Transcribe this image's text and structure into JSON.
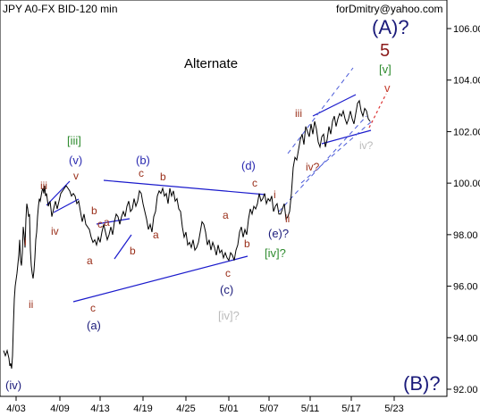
{
  "chart_data": {
    "type": "line",
    "title": "JPY A0-FX BID-120 min",
    "watermark": "forDmitry@yahoo.com",
    "annotation_text": "Alternate",
    "y_axis": {
      "position": "right",
      "ylim": [
        91.6,
        107
      ],
      "ticks": [
        "106.00",
        "104.00",
        "102.00",
        "100.00",
        "98.00",
        "96.00",
        "94.00",
        "92.00"
      ]
    },
    "x_axis": {
      "ticks": [
        "4/03",
        "4/09",
        "4/13",
        "4/19",
        "4/25",
        "5/01",
        "5/07",
        "5/11",
        "5/17",
        "5/23"
      ]
    },
    "grid": false,
    "colors": {
      "price": "#000000",
      "trendline": "#1a1acc",
      "channel_dashed": "#4a5ad8",
      "forecast": "#dd3333",
      "brown": "#9a2f1a",
      "green": "#2e8b2e",
      "gray": "#bbbbbb",
      "navy": "#1a1a7a",
      "blue_text": "#2a2ab0"
    },
    "price_x": [
      0,
      2,
      4,
      6,
      7,
      8,
      9,
      10,
      11,
      12,
      13,
      15,
      17,
      18,
      19,
      20,
      21,
      22,
      23,
      24,
      25,
      26,
      27,
      28,
      29,
      30,
      31,
      32,
      33,
      34,
      35,
      36,
      37,
      38,
      39,
      40,
      41,
      42,
      43,
      44,
      45,
      46,
      47,
      48,
      50,
      52,
      54,
      56,
      58,
      60,
      62,
      64,
      66,
      68,
      70,
      72,
      74,
      76,
      78,
      80,
      82,
      84,
      86,
      88,
      90,
      92,
      94,
      96,
      98,
      100,
      102,
      104,
      106,
      108,
      110,
      112,
      114,
      116,
      118,
      120,
      122,
      124,
      126,
      128,
      130,
      132,
      134,
      136,
      138,
      140,
      142,
      144,
      146,
      148,
      150,
      152,
      154,
      156,
      158,
      160,
      162,
      164,
      166,
      168,
      170,
      172,
      174,
      176,
      178,
      180,
      182,
      184,
      186,
      188,
      190,
      192,
      194,
      196,
      198,
      200,
      202,
      204,
      206,
      208,
      210,
      212,
      214,
      216,
      218,
      220,
      222,
      224,
      226,
      228,
      230,
      232,
      234,
      236,
      238,
      240,
      242,
      244,
      246,
      248,
      250,
      252,
      254,
      256,
      258,
      260,
      262,
      264,
      266,
      268,
      270,
      272,
      274,
      276,
      278,
      280,
      282,
      284,
      286,
      288,
      290,
      292,
      294,
      296,
      298,
      300,
      302,
      304,
      306,
      308,
      310,
      312,
      314,
      316,
      318,
      320,
      322,
      324,
      326,
      328,
      330,
      332,
      334,
      336,
      338,
      340,
      342,
      344,
      346,
      348,
      350,
      352,
      354,
      356,
      358,
      360,
      362,
      364,
      366,
      368,
      370,
      372,
      374,
      376,
      378,
      380,
      382,
      384,
      386,
      388,
      390,
      392,
      394,
      396,
      398,
      400,
      402,
      404,
      406,
      408,
      410
    ],
    "price_y": [
      93.5,
      93.3,
      93.5,
      93.2,
      92.9,
      93.0,
      92.8,
      93.3,
      94.5,
      95.5,
      96.0,
      96.5,
      97.2,
      97.8,
      97.0,
      96.8,
      97.3,
      98.3,
      98.0,
      97.5,
      98.6,
      99.2,
      99.0,
      98.7,
      98.8,
      97.4,
      96.8,
      96.5,
      96.3,
      96.6,
      97.1,
      97.8,
      98.1,
      98.7,
      99.1,
      99.4,
      99.3,
      99.5,
      99.7,
      99.8,
      99.6,
      99.9,
      99.5,
      99.6,
      99.1,
      99.3,
      98.7,
      99.0,
      99.3,
      99.0,
      99.3,
      99.6,
      99.7,
      99.8,
      99.9,
      99.8,
      99.7,
      99.5,
      99.6,
      99.5,
      99.2,
      99.3,
      98.9,
      98.5,
      98.8,
      98.4,
      98.3,
      98.2,
      97.9,
      97.7,
      97.8,
      97.6,
      97.9,
      97.7,
      98.1,
      98.4,
      98.1,
      97.8,
      98.0,
      98.3,
      98.0,
      98.5,
      98.8,
      98.7,
      98.4,
      98.7,
      98.9,
      98.7,
      99.1,
      99.3,
      98.9,
      99.0,
      99.4,
      99.1,
      99.3,
      99.7,
      99.6,
      99.2,
      98.9,
      98.6,
      98.2,
      98.4,
      98.1,
      98.7,
      98.9,
      99.5,
      99.7,
      99.6,
      99.8,
      99.5,
      99.6,
      99.2,
      99.8,
      99.5,
      99.7,
      99.3,
      99.4,
      99.0,
      98.9,
      98.3,
      97.9,
      98.1,
      97.6,
      97.7,
      97.5,
      97.8,
      97.4,
      97.5,
      97.7,
      98.1,
      98.5,
      98.4,
      98.1,
      97.6,
      97.8,
      97.4,
      97.7,
      97.5,
      97.2,
      97.6,
      97.3,
      97.4,
      97.1,
      97.3,
      97.1,
      97.0,
      97.3,
      97.2,
      97.0,
      97.4,
      97.6,
      98.1,
      98.3,
      97.9,
      98.2,
      98.0,
      98.6,
      99.0,
      98.8,
      99.1,
      99.0,
      99.2,
      99.6,
      99.3,
      99.4,
      99.6,
      99.2,
      99.4,
      99.3,
      99.5,
      98.9,
      99.1,
      99.2,
      98.8,
      98.8,
      99.0,
      99.2,
      98.6,
      98.7,
      98.9,
      99.6,
      100.6,
      101.0,
      100.9,
      101.3,
      101.7,
      101.9,
      101.5,
      102.2,
      102.0,
      101.8,
      102.3,
      101.9,
      102.4,
      102.1,
      101.6,
      101.4,
      101.8,
      101.9,
      101.4,
      101.7,
      102.2,
      101.9,
      102.4,
      102.6,
      102.2,
      102.5,
      102.7,
      102.6,
      102.8,
      102.5,
      102.3,
      102.5,
      102.8,
      102.5,
      102.3,
      102.7,
      103.1,
      103.2,
      102.8,
      102.6,
      102.9,
      102.8,
      102.5,
      102.4,
      102.3,
      102.1
    ]
  },
  "labels": {
    "a_q": "(A)?",
    "five": "5",
    "v_g": "[v]",
    "v_r": "v",
    "iii_g": "[iii]",
    "v_p": "(v)",
    "b_p": "(b)",
    "c_top": "c",
    "b_top": "b",
    "iii_sm": "iii",
    "v_sm": "v",
    "iv_sm": "iv",
    "i_sm": "i",
    "ii_sm": "ii",
    "b1": "b",
    "c1": "c",
    "a1": "a",
    "b2": "b",
    "a2": "a",
    "c2": "c",
    "a_p": "(a)",
    "a3": "a",
    "a4": "a",
    "b3": "b",
    "c3": "c",
    "c_p": "(c)",
    "iv_gray": "[iv]?",
    "d_p": "(d)",
    "c4": "c",
    "i2": "i",
    "ii2": "ii",
    "e_q": "(e)?",
    "iv_g_q": "[iv]?",
    "iii2": "iii",
    "iv2_q": "iv?",
    "iv_gray_q": "iv?",
    "iv_p": "(iv)",
    "b_q": "(B)?"
  }
}
